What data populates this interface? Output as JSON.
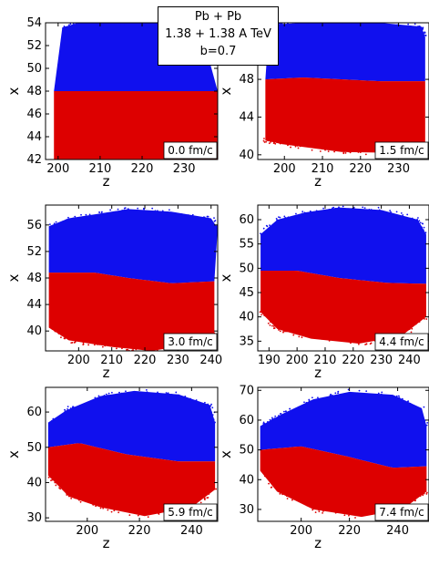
{
  "header": {
    "line1": "Pb + Pb",
    "line2": "1.38 + 1.38 A TeV",
    "line3": "b=0.7"
  },
  "colors": {
    "upper": "#1010ee",
    "lower": "#dd0000"
  },
  "chart_data": [
    {
      "type": "scatter",
      "panel": "top-left",
      "time_label": "0.0 fm/c",
      "xlabel": "z",
      "ylabel": "x",
      "xlim": [
        197,
        238
      ],
      "ylim": [
        42,
        54
      ],
      "xticks": [
        200,
        210,
        220,
        230
      ],
      "yticks": [
        42,
        44,
        46,
        48,
        50,
        52,
        54
      ],
      "boundary": {
        "z": [
          199,
          238
        ],
        "x": [
          48.0,
          48.0
        ]
      },
      "upper_edge": [
        [
          201,
          53.6
        ],
        [
          205,
          54
        ],
        [
          220,
          54
        ],
        [
          232,
          53.9
        ],
        [
          234,
          53.4
        ]
      ],
      "lower_edge": [
        [
          199,
          42
        ],
        [
          238,
          42
        ]
      ],
      "series": [
        {
          "name": "",
          "color": "#1010ee",
          "region": "x > boundary"
        },
        {
          "name": "",
          "color": "#dd0000",
          "region": "x < boundary"
        }
      ]
    },
    {
      "type": "scatter",
      "panel": "top-right",
      "time_label": "1.5 fm/c",
      "xlabel": "z",
      "ylabel": "x",
      "xlim": [
        193,
        238
      ],
      "ylim": [
        39.5,
        54
      ],
      "xticks": [
        200,
        210,
        220,
        230
      ],
      "yticks": [
        40,
        44,
        48
      ],
      "boundary": {
        "z": [
          195,
          205,
          215,
          225,
          237
        ],
        "x": [
          48.0,
          48.2,
          48.0,
          47.8,
          47.8
        ]
      },
      "upper_edge": [
        [
          196,
          53.8
        ],
        [
          205,
          54
        ],
        [
          225,
          54
        ],
        [
          236,
          53.6
        ],
        [
          237,
          52.5
        ]
      ],
      "lower_edge": [
        [
          195,
          41.5
        ],
        [
          200,
          41.1
        ],
        [
          215,
          40.3
        ],
        [
          230,
          40.2
        ],
        [
          237,
          40.8
        ]
      ],
      "series": [
        {
          "name": "",
          "color": "#1010ee",
          "region": "x > boundary"
        },
        {
          "name": "",
          "color": "#dd0000",
          "region": "x < boundary"
        }
      ]
    },
    {
      "type": "scatter",
      "panel": "middle-left",
      "time_label": "3.0 fm/c",
      "xlabel": "z",
      "ylabel": "x",
      "xlim": [
        190,
        242
      ],
      "ylim": [
        37,
        59
      ],
      "xticks": [
        200,
        210,
        220,
        230,
        240
      ],
      "yticks": [
        40,
        44,
        48,
        52,
        56
      ],
      "boundary": {
        "z": [
          191,
          205,
          215,
          228,
          241
        ],
        "x": [
          48.8,
          48.8,
          48.0,
          47.2,
          47.5
        ]
      },
      "upper_edge": [
        [
          191,
          55.8
        ],
        [
          197,
          57
        ],
        [
          205,
          57.6
        ],
        [
          215,
          58.4
        ],
        [
          228,
          58.0
        ],
        [
          240,
          57.0
        ],
        [
          242,
          55.5
        ]
      ],
      "lower_edge": [
        [
          191,
          40.5
        ],
        [
          197,
          38.6
        ],
        [
          210,
          37.6
        ],
        [
          222,
          37.0
        ],
        [
          235,
          38.0
        ],
        [
          241,
          39.5
        ]
      ],
      "series": [
        {
          "name": "",
          "color": "#1010ee",
          "region": "x > boundary"
        },
        {
          "name": "",
          "color": "#dd0000",
          "region": "x < boundary"
        }
      ]
    },
    {
      "type": "scatter",
      "panel": "middle-right",
      "time_label": "4.4 fm/c",
      "xlabel": "z",
      "ylabel": "x",
      "xlim": [
        186,
        247
      ],
      "ylim": [
        33,
        63
      ],
      "xticks": [
        190,
        200,
        210,
        220,
        230,
        240
      ],
      "yticks": [
        35,
        40,
        45,
        50,
        55,
        60
      ],
      "boundary": {
        "z": [
          187,
          200,
          215,
          232,
          246
        ],
        "x": [
          49.5,
          49.5,
          48.0,
          47.0,
          46.8
        ]
      },
      "upper_edge": [
        [
          187,
          57
        ],
        [
          193,
          60
        ],
        [
          203,
          61.5
        ],
        [
          215,
          62.5
        ],
        [
          230,
          62
        ],
        [
          243,
          60
        ],
        [
          246,
          57
        ]
      ],
      "lower_edge": [
        [
          187,
          41
        ],
        [
          193,
          37.5
        ],
        [
          205,
          35.5
        ],
        [
          222,
          34.5
        ],
        [
          237,
          36
        ],
        [
          246,
          40
        ]
      ],
      "series": [
        {
          "name": "",
          "color": "#1010ee",
          "region": "x > boundary"
        },
        {
          "name": "",
          "color": "#dd0000",
          "region": "x < boundary"
        }
      ]
    },
    {
      "type": "scatter",
      "panel": "bottom-left",
      "time_label": "5.9 fm/c",
      "xlabel": "z",
      "ylabel": "x",
      "xlim": [
        184,
        250
      ],
      "ylim": [
        29,
        67
      ],
      "xticks": [
        200,
        220,
        240
      ],
      "yticks": [
        30,
        40,
        50,
        60
      ],
      "boundary": {
        "z": [
          185,
          197,
          215,
          235,
          249
        ],
        "x": [
          50.0,
          51.2,
          48.0,
          46.0,
          46.0
        ]
      },
      "upper_edge": [
        [
          185,
          57
        ],
        [
          192,
          60.5
        ],
        [
          205,
          64.5
        ],
        [
          218,
          66
        ],
        [
          235,
          65
        ],
        [
          247,
          62
        ],
        [
          249,
          57
        ]
      ],
      "lower_edge": [
        [
          185,
          42
        ],
        [
          193,
          36
        ],
        [
          205,
          33
        ],
        [
          222,
          30.5
        ],
        [
          240,
          33
        ],
        [
          249,
          38
        ]
      ],
      "series": [
        {
          "name": "",
          "color": "#1010ee",
          "region": "x > boundary"
        },
        {
          "name": "",
          "color": "#dd0000",
          "region": "x < boundary"
        }
      ]
    },
    {
      "type": "scatter",
      "panel": "bottom-right",
      "time_label": "7.4 fm/c",
      "xlabel": "z",
      "ylabel": "x",
      "xlim": [
        182,
        253
      ],
      "ylim": [
        26,
        71
      ],
      "xticks": [
        200,
        220,
        240
      ],
      "yticks": [
        30,
        40,
        50,
        60,
        70
      ],
      "boundary": {
        "z": [
          183,
          200,
          218,
          238,
          252
        ],
        "x": [
          50.0,
          51.2,
          48.0,
          44.0,
          44.5
        ]
      },
      "upper_edge": [
        [
          183,
          58
        ],
        [
          192,
          62
        ],
        [
          205,
          67
        ],
        [
          220,
          69.5
        ],
        [
          238,
          68.5
        ],
        [
          250,
          64
        ],
        [
          252,
          58
        ]
      ],
      "lower_edge": [
        [
          183,
          43
        ],
        [
          190,
          36
        ],
        [
          205,
          30
        ],
        [
          225,
          27.5
        ],
        [
          242,
          30
        ],
        [
          252,
          36
        ]
      ],
      "series": [
        {
          "name": "",
          "color": "#1010ee",
          "region": "x > boundary"
        },
        {
          "name": "",
          "color": "#dd0000",
          "region": "x < boundary"
        }
      ]
    }
  ]
}
